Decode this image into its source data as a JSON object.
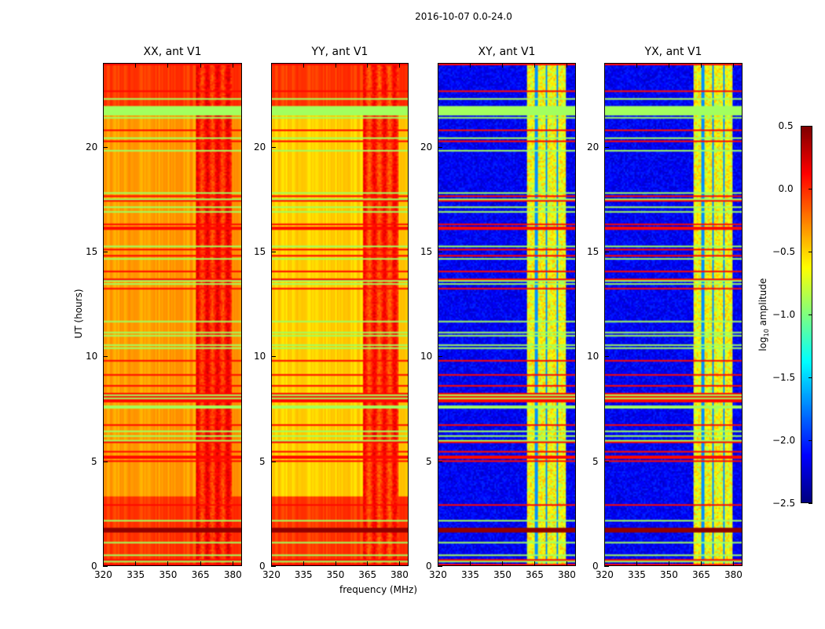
{
  "chart_data": {
    "type": "heatmap",
    "title": "2016-10-07 0.0-24.0",
    "xlabel": "frequency (MHz)",
    "ylabel": "UT (hours)",
    "xlim": [
      320,
      384.4
    ],
    "ylim": [
      0,
      24
    ],
    "xticks": [
      320,
      335,
      350,
      365,
      380
    ],
    "yticks": [
      0,
      5,
      10,
      15,
      20
    ],
    "colormap": "jet",
    "colorbar": {
      "label_prefix": "log",
      "label_sub": "10",
      "label_suffix": " amplitude",
      "range": [
        -2.5,
        0.5
      ],
      "ticks": [
        "−2.5",
        "−2.0",
        "−1.5",
        "−1.0",
        "−0.5",
        "0.0",
        "0.5"
      ]
    },
    "panels": [
      {
        "title": "XX, ant V1",
        "kind": "auto",
        "base": -0.35,
        "high_band": [
          363,
          380
        ],
        "high_value": 0.05
      },
      {
        "title": "YY, ant V1",
        "kind": "auto",
        "base": -0.5,
        "high_band": [
          363,
          380
        ],
        "high_value": 0.0
      },
      {
        "title": "XY, ant V1",
        "kind": "cross",
        "base": -2.3,
        "high_band": [
          362,
          380
        ],
        "high_value": -0.8
      },
      {
        "title": "YX, ant V1",
        "kind": "cross",
        "base": -2.3,
        "high_band": [
          362,
          380
        ],
        "high_value": -0.8
      }
    ],
    "flagged_time_bands_hours": [
      [
        21.5,
        22.0
      ],
      [
        1.6,
        1.8
      ]
    ]
  }
}
